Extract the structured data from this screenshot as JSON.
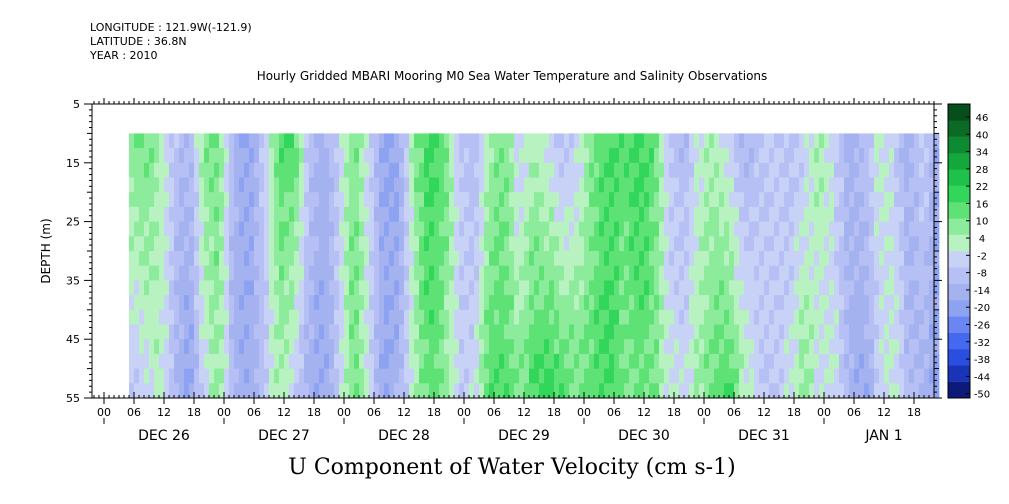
{
  "header": {
    "longitude": "LONGITUDE : 121.9W(-121.9)",
    "latitude": "LATITUDE : 36.8N",
    "year": "YEAR : 2010"
  },
  "chart_data": {
    "type": "heatmap",
    "title": "Hourly Gridded MBARI Mooring M0 Sea Water Temperature and Salinity Observations",
    "xlabel": "U Component of Water Velocity (cm s-1)",
    "ylabel": "DEPTH (m)",
    "ylim": [
      55,
      5
    ],
    "y_ticks": [
      5,
      15,
      25,
      35,
      45,
      55
    ],
    "hour_ticks": [
      "00",
      "06",
      "12",
      "18",
      "00",
      "06",
      "12",
      "18",
      "00",
      "06",
      "12",
      "18",
      "00",
      "06",
      "12",
      "18",
      "00",
      "06",
      "12",
      "18",
      "00",
      "06",
      "12",
      "18",
      "00",
      "06",
      "12",
      "18"
    ],
    "date_labels": [
      "DEC 26",
      "DEC 27",
      "DEC 28",
      "DEC 29",
      "DEC 30",
      "DEC 31",
      "JAN  1"
    ],
    "data_depth_range": [
      10,
      55
    ],
    "data_time_range_hours": [
      5,
      167
    ],
    "colorbar": {
      "levels": [
        -50,
        -44,
        -38,
        -32,
        -26,
        -20,
        -14,
        -8,
        -2,
        4,
        10,
        16,
        22,
        28,
        34,
        40,
        46
      ],
      "tick_labels": [
        "46",
        "40",
        "34",
        "28",
        "22",
        "16",
        "10",
        "4",
        "-2",
        "-8",
        "-14",
        "-20",
        "-26",
        "-32",
        "-38",
        "-44",
        "-50"
      ],
      "colors": [
        "#0d1a7a",
        "#1a34b8",
        "#2a4fe0",
        "#4468f0",
        "#6a86f2",
        "#8ea2f2",
        "#a5b2f0",
        "#b6c0f4",
        "#c8d2f6",
        "#b8f2c0",
        "#8cec9c",
        "#5ee276",
        "#32d65a",
        "#1ec24a",
        "#14a83c",
        "#0e8a32",
        "#0a6a26",
        "#064e1c"
      ]
    },
    "time_profile_hours": [
      5,
      8,
      11,
      14,
      17,
      20,
      23,
      26,
      29,
      32,
      35,
      38,
      41,
      44,
      47,
      50,
      53,
      56,
      59,
      62,
      65,
      68,
      71,
      74,
      77,
      80,
      83,
      86,
      89,
      92,
      95,
      98,
      101,
      104,
      107,
      110,
      113,
      116,
      119,
      122,
      125,
      128,
      131,
      134,
      137,
      140,
      143,
      146,
      149,
      152,
      155,
      158,
      161,
      164,
      167
    ],
    "surface_u": [
      6,
      12,
      4,
      -10,
      -14,
      8,
      10,
      -16,
      -22,
      -8,
      14,
      16,
      -10,
      -18,
      -6,
      10,
      -4,
      -22,
      -20,
      6,
      18,
      12,
      -8,
      -14,
      4,
      10,
      -6,
      2,
      -4,
      -12,
      -4,
      10,
      16,
      14,
      20,
      12,
      -8,
      -14,
      -2,
      4,
      -6,
      -14,
      -10,
      -4,
      -12,
      -6,
      4,
      -4,
      -18,
      -12,
      0,
      -6,
      -18,
      -4,
      -22
    ],
    "bottom_u": [
      -8,
      -6,
      2,
      -12,
      -24,
      -4,
      6,
      -16,
      -18,
      -10,
      4,
      -6,
      -18,
      -20,
      -8,
      12,
      -2,
      -20,
      -16,
      2,
      14,
      8,
      -6,
      -4,
      14,
      16,
      8,
      18,
      20,
      16,
      10,
      14,
      18,
      8,
      12,
      10,
      -2,
      -4,
      6,
      12,
      18,
      4,
      -6,
      -10,
      -2,
      8,
      -4,
      -2,
      -14,
      -22,
      -6,
      2,
      -12,
      -16,
      -24
    ]
  }
}
